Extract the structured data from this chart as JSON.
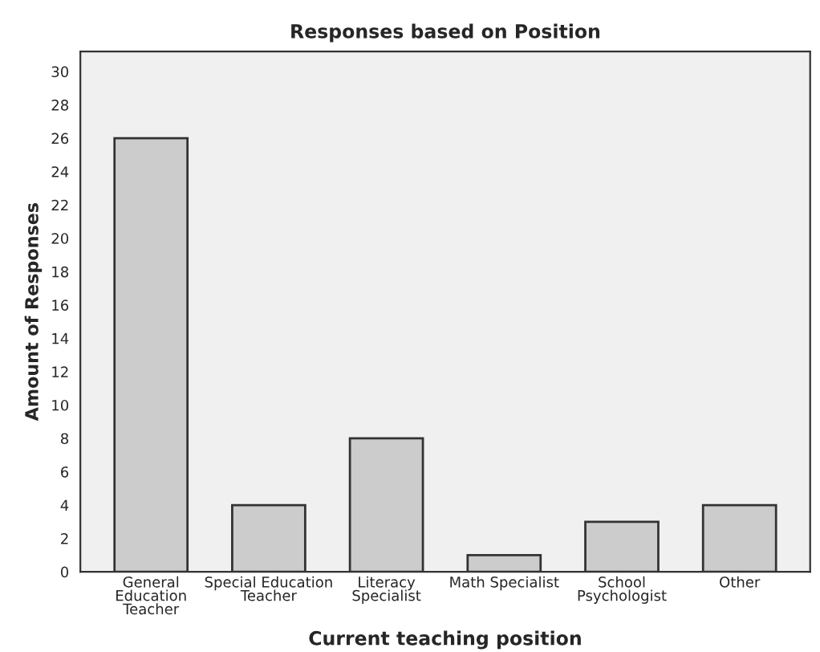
{
  "chart_data": {
    "type": "bar",
    "title": "Responses based on Position",
    "xlabel": "Current teaching position",
    "ylabel": "Amount of Responses",
    "categories": [
      "General\nEducation\nTeacher",
      "Special Education\nTeacher",
      "Literacy\nSpecialist",
      "Math Specialist",
      "School\nPsychologist",
      "Other"
    ],
    "values": [
      26,
      4,
      8,
      1,
      3,
      4
    ],
    "color": "#cccccc",
    "ylim": [
      0,
      31.2
    ],
    "yticks": [
      0,
      2,
      4,
      6,
      8,
      10,
      12,
      14,
      16,
      18,
      20,
      22,
      24,
      26,
      28,
      30
    ],
    "grid": false,
    "legend": false
  }
}
